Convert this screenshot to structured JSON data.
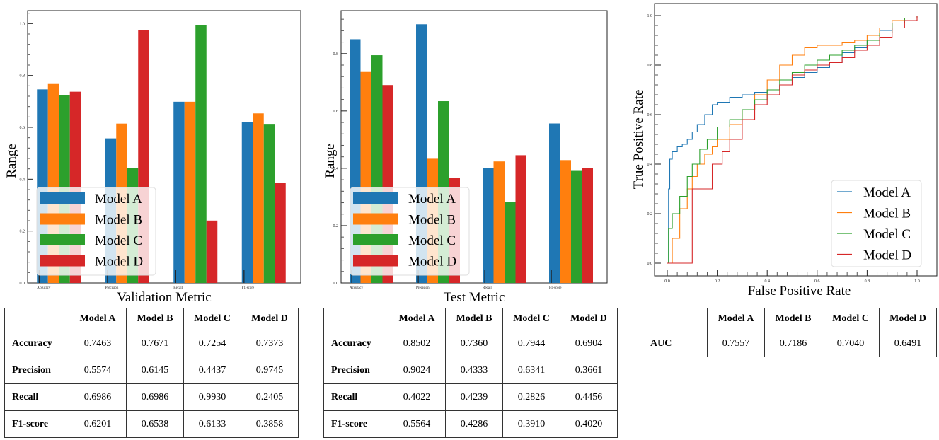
{
  "chart_data": [
    {
      "type": "bar",
      "xlabel": "Validation Metric",
      "ylabel": "Range",
      "categories": [
        "Accuracy",
        "Precision",
        "Recall",
        "F1-score"
      ],
      "ylim": [
        0,
        1.05
      ],
      "yticks": [
        "0.0",
        "0.2",
        "0.4",
        "0.6",
        "0.8",
        "1.0"
      ],
      "legend_position": "lower-left",
      "series": [
        {
          "name": "Model A",
          "values": [
            0.7463,
            0.5574,
            0.6986,
            0.6201
          ]
        },
        {
          "name": "Model B",
          "values": [
            0.7671,
            0.6145,
            0.6986,
            0.6538
          ]
        },
        {
          "name": "Model C",
          "values": [
            0.7254,
            0.4437,
            0.993,
            0.6133
          ]
        },
        {
          "name": "Model D",
          "values": [
            0.7373,
            0.9745,
            0.2405,
            0.3858
          ]
        }
      ]
    },
    {
      "type": "bar",
      "xlabel": "Test Metric",
      "ylabel": "Range",
      "categories": [
        "Accuracy",
        "Precision",
        "Recall",
        "F1-score"
      ],
      "ylim": [
        0,
        0.95
      ],
      "yticks": [
        "0.0",
        "0.2",
        "0.4",
        "0.6",
        "0.8"
      ],
      "legend_position": "lower-left",
      "series": [
        {
          "name": "Model A",
          "values": [
            0.8502,
            0.9024,
            0.4022,
            0.5564
          ]
        },
        {
          "name": "Model B",
          "values": [
            0.736,
            0.4333,
            0.4239,
            0.4286
          ]
        },
        {
          "name": "Model C",
          "values": [
            0.7944,
            0.6341,
            0.2826,
            0.391
          ]
        },
        {
          "name": "Model D",
          "values": [
            0.6904,
            0.3661,
            0.4456,
            0.402
          ]
        }
      ]
    },
    {
      "type": "line",
      "xlabel": "False Positive Rate",
      "ylabel": "True Positive Rate",
      "xlim": [
        0,
        1
      ],
      "ylim": [
        0,
        1
      ],
      "xticks": [
        "0.0",
        "0.2",
        "0.4",
        "0.6",
        "0.8",
        "1.0"
      ],
      "yticks": [
        "0.0",
        "0.2",
        "0.4",
        "0.6",
        "0.8",
        "1.0"
      ],
      "legend_position": "lower-right",
      "series": [
        {
          "name": "Model A",
          "x": [
            0,
            0.005,
            0.01,
            0.02,
            0.04,
            0.06,
            0.08,
            0.1,
            0.12,
            0.15,
            0.18,
            0.2,
            0.25,
            0.3,
            0.35,
            0.4,
            0.45,
            0.5,
            0.55,
            0.6,
            0.65,
            0.7,
            0.75,
            0.8,
            0.85,
            0.9,
            0.95,
            1.0
          ],
          "y": [
            0,
            0.3,
            0.42,
            0.45,
            0.47,
            0.48,
            0.5,
            0.53,
            0.56,
            0.6,
            0.64,
            0.65,
            0.67,
            0.68,
            0.69,
            0.7,
            0.72,
            0.75,
            0.77,
            0.79,
            0.81,
            0.85,
            0.87,
            0.9,
            0.94,
            0.97,
            0.99,
            1.0
          ]
        },
        {
          "name": "Model B",
          "x": [
            0,
            0.02,
            0.05,
            0.08,
            0.1,
            0.12,
            0.15,
            0.18,
            0.2,
            0.25,
            0.3,
            0.35,
            0.4,
            0.45,
            0.5,
            0.55,
            0.6,
            0.65,
            0.7,
            0.75,
            0.8,
            0.85,
            0.9,
            0.95,
            1.0
          ],
          "y": [
            0,
            0.1,
            0.22,
            0.3,
            0.35,
            0.4,
            0.44,
            0.47,
            0.5,
            0.56,
            0.62,
            0.68,
            0.74,
            0.8,
            0.84,
            0.87,
            0.88,
            0.88,
            0.89,
            0.9,
            0.92,
            0.95,
            0.98,
            0.99,
            1.0
          ]
        },
        {
          "name": "Model C",
          "x": [
            0,
            0.005,
            0.02,
            0.05,
            0.08,
            0.1,
            0.13,
            0.16,
            0.2,
            0.25,
            0.3,
            0.35,
            0.4,
            0.45,
            0.5,
            0.55,
            0.6,
            0.65,
            0.7,
            0.75,
            0.8,
            0.85,
            0.9,
            0.95,
            1.0
          ],
          "y": [
            0,
            0.14,
            0.2,
            0.27,
            0.35,
            0.4,
            0.46,
            0.5,
            0.55,
            0.58,
            0.62,
            0.66,
            0.7,
            0.74,
            0.77,
            0.8,
            0.82,
            0.84,
            0.86,
            0.88,
            0.9,
            0.93,
            0.97,
            0.99,
            1.0
          ]
        },
        {
          "name": "Model D",
          "x": [
            0,
            0.1,
            0.18,
            0.22,
            0.25,
            0.3,
            0.35,
            0.4,
            0.45,
            0.5,
            0.55,
            0.6,
            0.65,
            0.7,
            0.75,
            0.8,
            0.85,
            0.9,
            0.95,
            1.0
          ],
          "y": [
            0,
            0.3,
            0.4,
            0.45,
            0.5,
            0.58,
            0.64,
            0.68,
            0.72,
            0.76,
            0.78,
            0.8,
            0.81,
            0.83,
            0.86,
            0.88,
            0.91,
            0.95,
            0.98,
            1.0
          ]
        }
      ]
    }
  ],
  "colors": {
    "Model A": "#1f77b4",
    "Model B": "#ff7f0e",
    "Model C": "#2ca02c",
    "Model D": "#d62728"
  },
  "tables": {
    "validation": {
      "headers": [
        "",
        "Model A",
        "Model B",
        "Model C",
        "Model D"
      ],
      "rows": [
        [
          "Accuracy",
          "0.7463",
          "0.7671",
          "0.7254",
          "0.7373"
        ],
        [
          "Precision",
          "0.5574",
          "0.6145",
          "0.4437",
          "0.9745"
        ],
        [
          "Recall",
          "0.6986",
          "0.6986",
          "0.9930",
          "0.2405"
        ],
        [
          "F1-score",
          "0.6201",
          "0.6538",
          "0.6133",
          "0.3858"
        ]
      ]
    },
    "test": {
      "headers": [
        "",
        "Model A",
        "Model B",
        "Model C",
        "Model D"
      ],
      "rows": [
        [
          "Accuracy",
          "0.8502",
          "0.7360",
          "0.7944",
          "0.6904"
        ],
        [
          "Precision",
          "0.9024",
          "0.4333",
          "0.6341",
          "0.3661"
        ],
        [
          "Recall",
          "0.4022",
          "0.4239",
          "0.2826",
          "0.4456"
        ],
        [
          "F1-score",
          "0.5564",
          "0.4286",
          "0.3910",
          "0.4020"
        ]
      ]
    },
    "auc": {
      "headers": [
        "",
        "Model A",
        "Model B",
        "Model C",
        "Model D"
      ],
      "rows": [
        [
          "AUC",
          "0.7557",
          "0.7186",
          "0.7040",
          "0.6491"
        ]
      ]
    }
  }
}
